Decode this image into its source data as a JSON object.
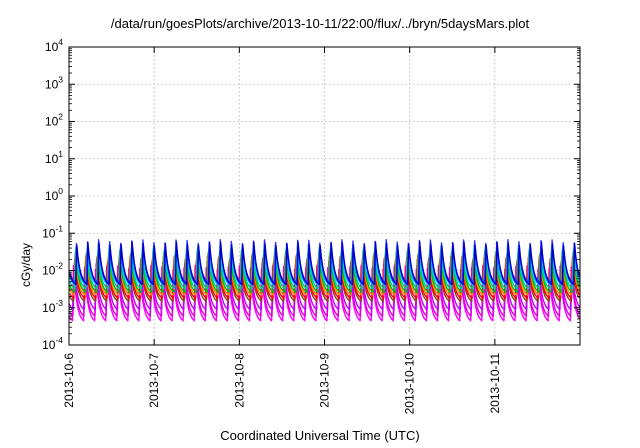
{
  "chart_data": {
    "type": "line",
    "title": "/data/run/goesPlots/archive/2013-10-11/22:00/flux/../bryn/5daysMars.plot",
    "xlabel": "Coordinated Universal Time (UTC)",
    "ylabel": "cGy/day",
    "y_scale": "log",
    "ylim": [
      0.0001,
      10000
    ],
    "y_ticks": [
      {
        "base": "10",
        "exp": "-4",
        "value": 0.0001
      },
      {
        "base": "10",
        "exp": "-3",
        "value": 0.001
      },
      {
        "base": "10",
        "exp": "-2",
        "value": 0.01
      },
      {
        "base": "10",
        "exp": "-1",
        "value": 0.1
      },
      {
        "base": "10",
        "exp": "0",
        "value": 1
      },
      {
        "base": "10",
        "exp": "1",
        "value": 10
      },
      {
        "base": "10",
        "exp": "2",
        "value": 100
      },
      {
        "base": "10",
        "exp": "3",
        "value": 1000
      },
      {
        "base": "10",
        "exp": "4",
        "value": 10000
      }
    ],
    "xlim": [
      "2013-10-06",
      "2013-10-12"
    ],
    "x_ticks": [
      "2013-10-6",
      "2013-10-7",
      "2013-10-8",
      "2013-10-9",
      "2013-10-10",
      "2013-10-11"
    ],
    "grid": true,
    "legend": "none",
    "sawtooth_cycles_per_day": 7.7,
    "series": [
      {
        "color": "#ff00ff",
        "peak": 0.012,
        "trough": 0.00045
      },
      {
        "color": "#dd00dd",
        "peak": 0.011,
        "trough": 0.0006
      },
      {
        "color": "#c000ff",
        "peak": 0.014,
        "trough": 0.0009
      },
      {
        "color": "#8b4513",
        "peak": 0.018,
        "trough": 0.0015
      },
      {
        "color": "#ff0000",
        "peak": 0.022,
        "trough": 0.0018
      },
      {
        "color": "#ff8800",
        "peak": 0.025,
        "trough": 0.0022
      },
      {
        "color": "#00c000",
        "peak": 0.03,
        "trough": 0.0026
      },
      {
        "color": "#00cc99",
        "peak": 0.035,
        "trough": 0.0032
      },
      {
        "color": "#00bfff",
        "peak": 0.045,
        "trough": 0.004
      },
      {
        "color": "#3333ff",
        "peak": 0.06,
        "trough": 0.0048
      },
      {
        "color": "#0000cc",
        "peak": 0.052,
        "trough": 0.0042
      }
    ]
  }
}
